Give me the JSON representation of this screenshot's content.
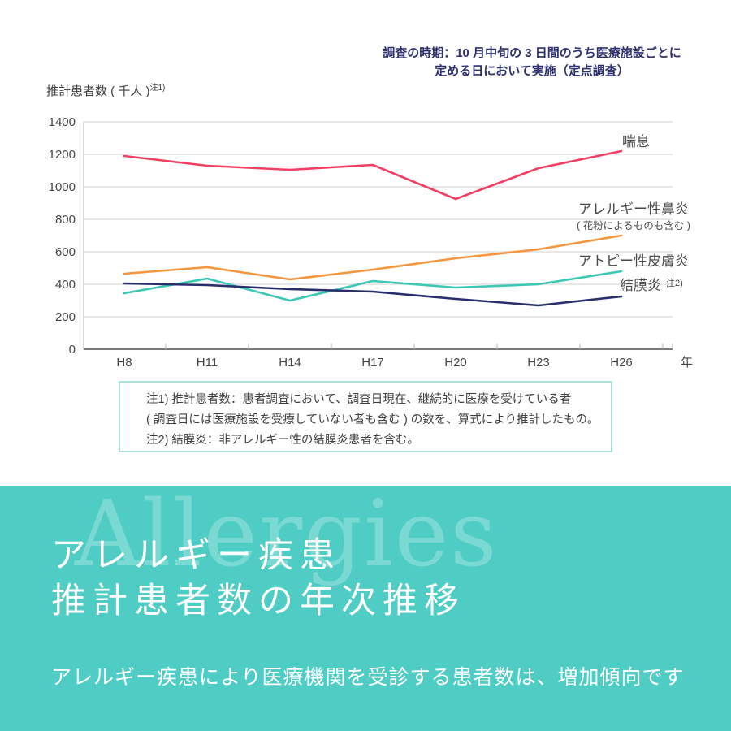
{
  "survey_note": {
    "line1": "調査の時期：10 月中旬の 3 日間のうち医療施設ごとに",
    "line2": "定める日において実施（定点調査）"
  },
  "axis_title": {
    "text": "推計患者数 ( 千人 )",
    "superscript": "注1)"
  },
  "chart_data": {
    "type": "line",
    "title": "アレルギー疾患 推計患者数の年次推移",
    "categories": [
      "H8",
      "H11",
      "H14",
      "H17",
      "H20",
      "H23",
      "H26"
    ],
    "x_axis_suffix": "年",
    "ylabel": "推計患者数 ( 千人 )",
    "ylim": [
      0,
      1400
    ],
    "ytick_step": 200,
    "yticks": [
      0,
      200,
      400,
      600,
      800,
      1000,
      1200,
      1400
    ],
    "grid": true,
    "legend_position": "right-of-lines",
    "series": [
      {
        "name": "喘息",
        "values": [
          1190,
          1130,
          1105,
          1135,
          925,
          1115,
          1220
        ],
        "color": "#f23f63"
      },
      {
        "name": "アレルギー性鼻炎",
        "name_sub": "( 花粉によるものも含む )",
        "values": [
          465,
          505,
          430,
          490,
          560,
          615,
          700
        ],
        "color": "#f5953d"
      },
      {
        "name": "アトピー性皮膚炎",
        "values": [
          345,
          435,
          300,
          420,
          380,
          400,
          480
        ],
        "color": "#3cc7b6"
      },
      {
        "name": "結膜炎",
        "name_sup": "注2)",
        "values": [
          405,
          395,
          370,
          355,
          310,
          270,
          325
        ],
        "color": "#292f6d"
      }
    ]
  },
  "notes_box": {
    "line1": "注1) 推計患者数：患者調査において、調査日現在、継続的に医療を受けている者",
    "line2": "( 調査日には医療施設を受療していない者も含む ) の数を、算式により推計したもの。",
    "line3": "注2) 結膜炎：非アレルギー性の結膜炎患者を含む。"
  },
  "footer": {
    "watermark": "Allergies",
    "title_line1": "アレルギー疾患",
    "title_line2": "推計患者数の年次推移",
    "subtitle": "アレルギー疾患により医療機関を受診する患者数は、増加傾向です",
    "background_color": "#4fccc4"
  },
  "colors": {
    "note_text": "#2d3170",
    "chart_text": "#454545",
    "gridline": "#dadada",
    "x_axis": "#4f4f4f",
    "y_axis": "#c5c5c5"
  }
}
